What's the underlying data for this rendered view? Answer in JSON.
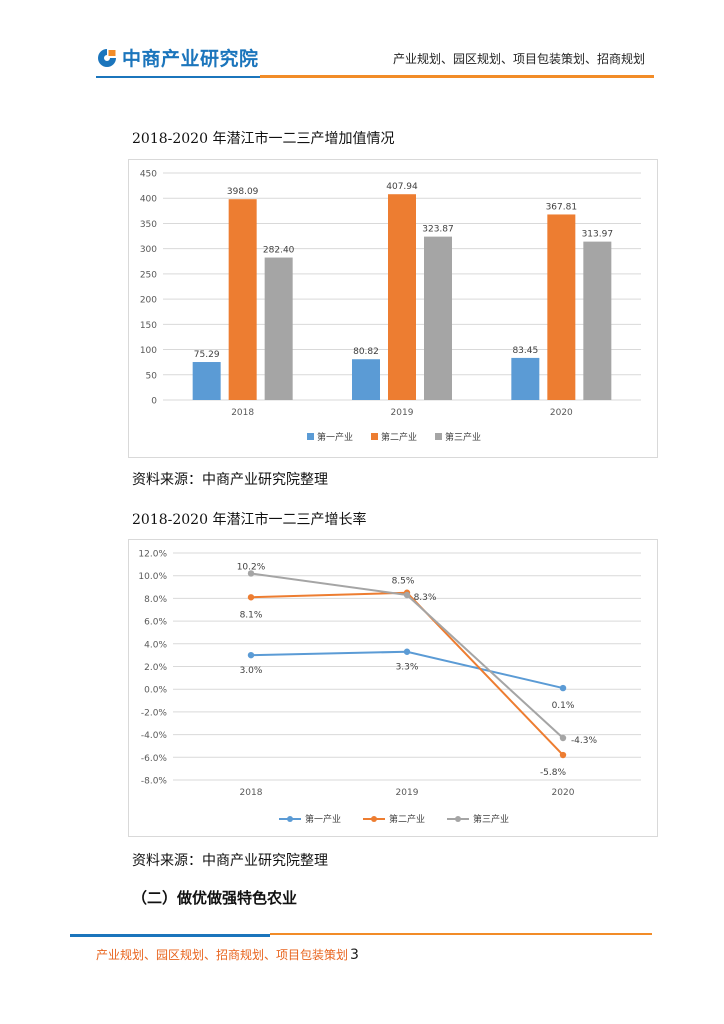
{
  "header": {
    "brand": "中商产业研究院",
    "tagline": "产业规划、园区规划、项目包装策划、招商规划",
    "brand_color": "#1b75bc",
    "accent_color": "#f28c28"
  },
  "figure1": {
    "caption": "2018-2020 年潜江市一二三产增加值情况",
    "source": "资料来源：中商产业研究院整理"
  },
  "figure2": {
    "caption": "2018-2020 年潜江市一二三产增长率",
    "source": "资料来源：中商产业研究院整理"
  },
  "section": {
    "heading": "（二）做优做强特色农业"
  },
  "footer": {
    "text": "产业规划、园区规划、招商规划、项目包装策划",
    "page": "3"
  },
  "chart_data": [
    {
      "type": "bar",
      "categories": [
        "2018",
        "2019",
        "2020"
      ],
      "series": [
        {
          "name": "第一产业",
          "color": "#5b9bd5",
          "values": [
            75.29,
            80.82,
            83.45
          ],
          "labels": [
            "75.29",
            "80.82",
            "83.45"
          ]
        },
        {
          "name": "第二产业",
          "color": "#ed7d31",
          "values": [
            398.09,
            407.94,
            367.81
          ],
          "labels": [
            "398.09",
            "407.94",
            "367.81"
          ]
        },
        {
          "name": "第三产业",
          "color": "#a5a5a5",
          "values": [
            282.4,
            323.87,
            313.97
          ],
          "labels": [
            "282.40",
            "323.87",
            "313.97"
          ]
        }
      ],
      "yticks": [
        "0",
        "50",
        "100",
        "150",
        "200",
        "250",
        "300",
        "350",
        "400",
        "450"
      ],
      "ylim": [
        0,
        450
      ],
      "grid": true,
      "legend": "bottom"
    },
    {
      "type": "line",
      "categories": [
        "2018",
        "2019",
        "2020"
      ],
      "series": [
        {
          "name": "第一产业",
          "color": "#5b9bd5",
          "values": [
            3.0,
            3.3,
            0.1
          ],
          "labels": [
            "3.0%",
            "3.3%",
            "0.1%"
          ]
        },
        {
          "name": "第二产业",
          "color": "#ed7d31",
          "values": [
            8.1,
            8.5,
            -5.8
          ],
          "labels": [
            "8.1%",
            "8.5%",
            "-5.8%"
          ]
        },
        {
          "name": "第三产业",
          "color": "#a5a5a5",
          "values": [
            10.2,
            8.3,
            -4.3
          ],
          "labels": [
            "10.2%",
            "8.3%",
            "-4.3%"
          ]
        }
      ],
      "yticks": [
        "-8.0%",
        "-6.0%",
        "-4.0%",
        "-2.0%",
        "0.0%",
        "2.0%",
        "4.0%",
        "6.0%",
        "8.0%",
        "10.0%",
        "12.0%"
      ],
      "ylim": [
        -8,
        12
      ],
      "grid": true,
      "legend": "bottom"
    }
  ]
}
